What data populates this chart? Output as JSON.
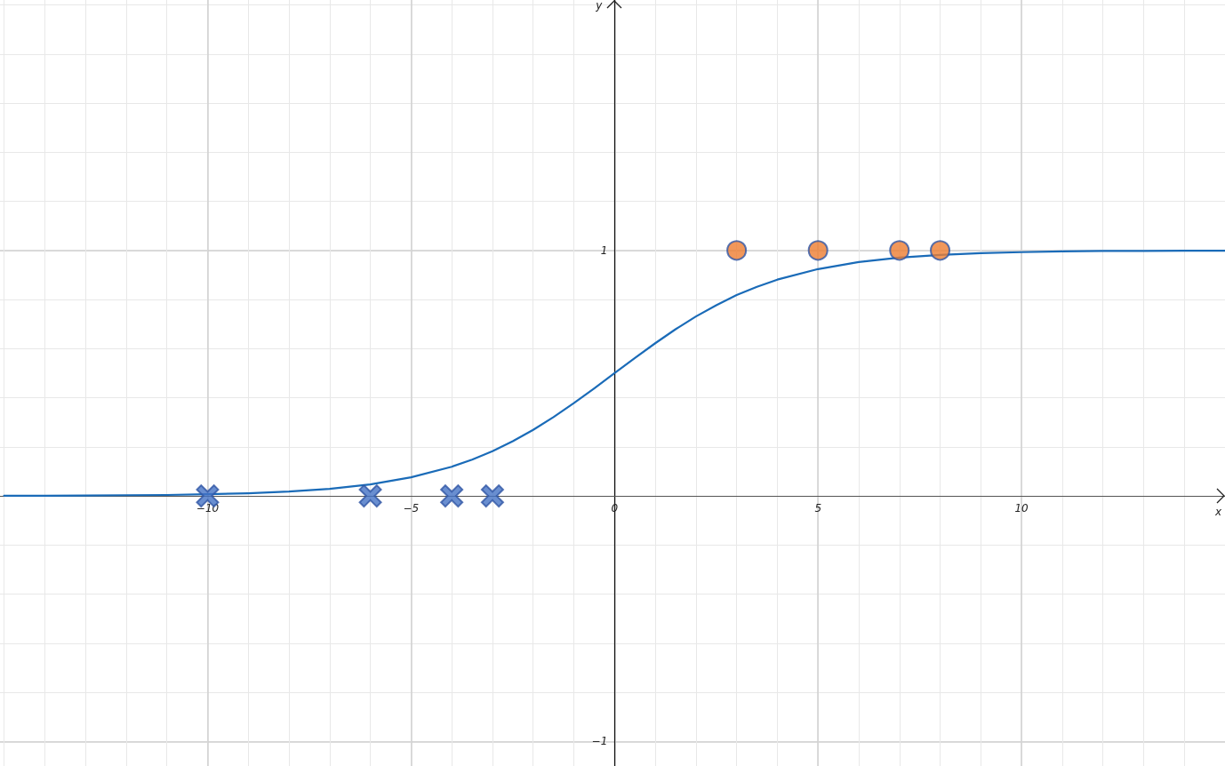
{
  "chart_data": {
    "type": "line",
    "xlabel": "x",
    "ylabel": "y",
    "xlim": [
      -15.1,
      15.0
    ],
    "ylim": [
      -1.1,
      2.02
    ],
    "xticks": [
      {
        "value": -15,
        "label": null
      },
      {
        "value": -14,
        "label": null
      },
      {
        "value": -13,
        "label": null
      },
      {
        "value": -12,
        "label": null
      },
      {
        "value": -11,
        "label": null
      },
      {
        "value": -10,
        "label": "−10"
      },
      {
        "value": -9,
        "label": null
      },
      {
        "value": -8,
        "label": null
      },
      {
        "value": -7,
        "label": null
      },
      {
        "value": -6,
        "label": null
      },
      {
        "value": -5,
        "label": "−5"
      },
      {
        "value": -4,
        "label": null
      },
      {
        "value": -3,
        "label": null
      },
      {
        "value": -2,
        "label": null
      },
      {
        "value": -1,
        "label": null
      },
      0,
      {
        "value": 1,
        "label": null
      },
      {
        "value": 2,
        "label": null
      },
      {
        "value": 3,
        "label": null
      },
      {
        "value": 4,
        "label": null
      },
      5,
      {
        "value": 6,
        "label": null
      },
      {
        "value": 7,
        "label": null
      },
      {
        "value": 8,
        "label": null
      },
      {
        "value": 9,
        "label": null
      },
      10,
      {
        "value": 11,
        "label": null
      },
      {
        "value": 12,
        "label": null
      },
      {
        "value": 13,
        "label": null
      },
      {
        "value": 14,
        "label": null
      }
    ],
    "yticks": [
      {
        "value": -1,
        "label": "−1"
      },
      {
        "value": -0.8,
        "label": null
      },
      {
        "value": -0.6,
        "label": null
      },
      {
        "value": -0.4,
        "label": null
      },
      {
        "value": -0.2,
        "label": null
      },
      {
        "value": 0,
        "label": null
      },
      {
        "value": 0.2,
        "label": null
      },
      {
        "value": 0.4,
        "label": null
      },
      {
        "value": 0.6,
        "label": null
      },
      {
        "value": 0.8,
        "label": null
      },
      1,
      {
        "value": 1.2,
        "label": null
      },
      {
        "value": 1.4,
        "label": null
      },
      {
        "value": 1.6,
        "label": null
      },
      {
        "value": 1.8,
        "label": null
      },
      {
        "value": 2,
        "label": null
      }
    ],
    "grid": true,
    "line_style": "solid",
    "series": [
      {
        "color": "#1a6bb8",
        "marker": "none",
        "x": [
          -15,
          -14,
          -13,
          -12,
          -11,
          -10,
          -9,
          -8,
          -7,
          -6,
          -5,
          -4,
          -3.5,
          -3,
          -2.5,
          -2,
          -1.5,
          -1,
          -0.5,
          0,
          0.5,
          1,
          1.5,
          2,
          2.5,
          3,
          3.5,
          4,
          5,
          6,
          7,
          8,
          9,
          10,
          11,
          12,
          13,
          14,
          15
        ],
        "values": [
          0.001,
          0.001,
          0.002,
          0.003,
          0.004,
          0.007,
          0.011,
          0.018,
          0.029,
          0.047,
          0.076,
          0.119,
          0.148,
          0.182,
          0.223,
          0.269,
          0.321,
          0.378,
          0.438,
          0.5,
          0.562,
          0.622,
          0.679,
          0.731,
          0.777,
          0.818,
          0.852,
          0.881,
          0.924,
          0.953,
          0.971,
          0.982,
          0.989,
          0.993,
          0.996,
          0.998,
          0.998,
          0.999,
          0.999
        ]
      },
      {
        "type": "scatter",
        "color": "#4472c4",
        "marker": "cross",
        "x": [
          -10,
          -6,
          -4,
          -3
        ],
        "values": [
          0,
          0,
          0,
          0
        ]
      },
      {
        "type": "scatter",
        "color": "#ed7d31",
        "marker": "circle",
        "x": [
          3,
          5,
          7,
          8
        ],
        "values": [
          1,
          1,
          1,
          1
        ]
      }
    ]
  }
}
